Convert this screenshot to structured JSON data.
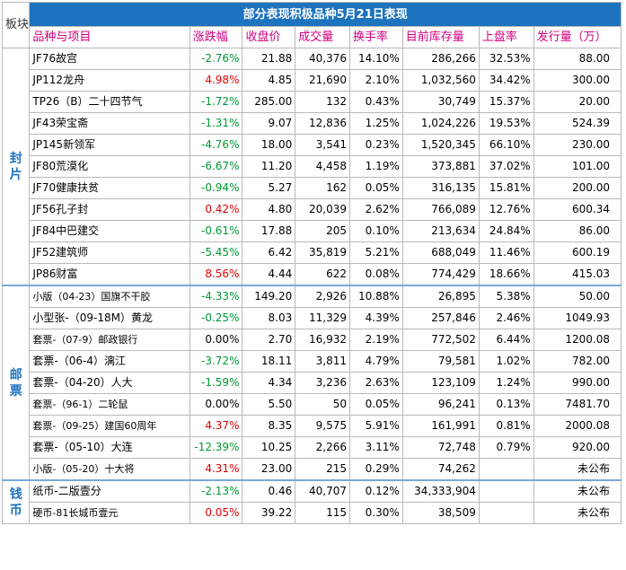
{
  "table": {
    "corner_label": "板块",
    "title": "部分表现积极品种5月21日表现",
    "headers": [
      "品种与项目",
      "涨跌幅",
      "收盘价",
      "成交量",
      "换手率",
      "目前库存量",
      "上盘率",
      "发行量（万）"
    ]
  },
  "colors": {
    "up": "#e00000",
    "down": "#009933",
    "accent": "#1e73be",
    "header_text": "#d2007f"
  },
  "sections": [
    {
      "label": "封\n片",
      "rows": [
        {
          "name": "JF76故宫",
          "change": "-2.76%",
          "dir": "down",
          "close": "21.88",
          "volume": "40,376",
          "turnover": "14.10%",
          "stock": "286,266",
          "rate": "32.53%",
          "issue": "88.00"
        },
        {
          "name": "JP112龙舟",
          "change": "4.98%",
          "dir": "up",
          "close": "4.85",
          "volume": "21,690",
          "turnover": "2.10%",
          "stock": "1,032,560",
          "rate": "34.42%",
          "issue": "300.00"
        },
        {
          "name": "TP26（B）二十四节气",
          "change": "-1.72%",
          "dir": "down",
          "close": "285.00",
          "volume": "132",
          "turnover": "0.43%",
          "stock": "30,749",
          "rate": "15.37%",
          "issue": "20.00"
        },
        {
          "name": "JF43荣宝斋",
          "change": "-1.31%",
          "dir": "down",
          "close": "9.07",
          "volume": "12,836",
          "turnover": "1.25%",
          "stock": "1,024,226",
          "rate": "19.53%",
          "issue": "524.39"
        },
        {
          "name": "JP145新领军",
          "change": "-4.76%",
          "dir": "down",
          "close": "18.00",
          "volume": "3,541",
          "turnover": "0.23%",
          "stock": "1,520,345",
          "rate": "66.10%",
          "issue": "230.00"
        },
        {
          "name": "JF80荒漠化",
          "change": "-6.67%",
          "dir": "down",
          "close": "11.20",
          "volume": "4,458",
          "turnover": "1.19%",
          "stock": "373,881",
          "rate": "37.02%",
          "issue": "101.00"
        },
        {
          "name": "JF70健康扶贫",
          "change": "-0.94%",
          "dir": "down",
          "close": "5.27",
          "volume": "162",
          "turnover": "0.05%",
          "stock": "316,135",
          "rate": "15.81%",
          "issue": "200.00"
        },
        {
          "name": "JF56孔子封",
          "change": "0.42%",
          "dir": "up",
          "close": "4.80",
          "volume": "20,039",
          "turnover": "2.62%",
          "stock": "766,089",
          "rate": "12.76%",
          "issue": "600.34"
        },
        {
          "name": "JF84中巴建交",
          "change": "-0.61%",
          "dir": "down",
          "close": "17.88",
          "volume": "205",
          "turnover": "0.10%",
          "stock": "213,634",
          "rate": "24.84%",
          "issue": "86.00"
        },
        {
          "name": "JF52建筑师",
          "change": "-5.45%",
          "dir": "down",
          "close": "6.42",
          "volume": "35,819",
          "turnover": "5.21%",
          "stock": "688,049",
          "rate": "11.46%",
          "issue": "600.19"
        },
        {
          "name": "JP86财富",
          "change": "8.56%",
          "dir": "up",
          "close": "4.44",
          "volume": "622",
          "turnover": "0.08%",
          "stock": "774,429",
          "rate": "18.66%",
          "issue": "415.03"
        }
      ]
    },
    {
      "label": "邮\n票",
      "rows": [
        {
          "name": "小版（04-23）国旗不干胶",
          "small": true,
          "change": "-4.33%",
          "dir": "down",
          "close": "149.20",
          "volume": "2,926",
          "turnover": "10.88%",
          "stock": "26,895",
          "rate": "5.38%",
          "issue": "50.00"
        },
        {
          "name": "小型张-（09-18M）黄龙",
          "change": "-0.25%",
          "dir": "down",
          "close": "8.03",
          "volume": "11,329",
          "turnover": "4.39%",
          "stock": "257,846",
          "rate": "2.46%",
          "issue": "1049.93"
        },
        {
          "name": "套票-（07-9）邮政银行",
          "small": true,
          "change": "0.00%",
          "dir": "flat",
          "close": "2.70",
          "volume": "16,932",
          "turnover": "2.19%",
          "stock": "772,502",
          "rate": "6.44%",
          "issue": "1200.08"
        },
        {
          "name": "套票-（06-4）漓江",
          "change": "-3.72%",
          "dir": "down",
          "close": "18.11",
          "volume": "3,811",
          "turnover": "4.79%",
          "stock": "79,581",
          "rate": "1.02%",
          "issue": "782.00"
        },
        {
          "name": "套票-（04-20）人大",
          "change": "-1.59%",
          "dir": "down",
          "close": "4.34",
          "volume": "3,236",
          "turnover": "2.63%",
          "stock": "123,109",
          "rate": "1.24%",
          "issue": "990.00"
        },
        {
          "name": "套票-（96-1）二轮鼠",
          "small": true,
          "change": "0.00%",
          "dir": "flat",
          "close": "5.50",
          "volume": "50",
          "turnover": "0.05%",
          "stock": "96,241",
          "rate": "0.13%",
          "issue": "7481.70"
        },
        {
          "name": "套票-（09-25）建国60周年",
          "small": true,
          "change": "4.37%",
          "dir": "up",
          "close": "8.35",
          "volume": "9,575",
          "turnover": "5.91%",
          "stock": "161,991",
          "rate": "0.81%",
          "issue": "2000.08"
        },
        {
          "name": "套票-（05-10）大连",
          "change": "-12.39%",
          "dir": "down",
          "close": "10.25",
          "volume": "2,266",
          "turnover": "3.11%",
          "stock": "72,748",
          "rate": "0.79%",
          "issue": "920.00"
        },
        {
          "name": "小版-（05-20）十大将",
          "small": true,
          "change": "4.31%",
          "dir": "up",
          "close": "23.00",
          "volume": "215",
          "turnover": "0.29%",
          "stock": "74,262",
          "rate": "",
          "issue": "未公布"
        }
      ]
    },
    {
      "label": "钱\n币",
      "rows": [
        {
          "name": "纸币-二版壹分",
          "change": "-2.13%",
          "dir": "down",
          "close": "0.46",
          "volume": "40,707",
          "turnover": "0.12%",
          "stock": "34,333,904",
          "rate": "",
          "issue": "未公布"
        },
        {
          "name": "硬币-81长城币壹元",
          "small": true,
          "change": "0.05%",
          "dir": "up",
          "close": "39.22",
          "volume": "115",
          "turnover": "0.30%",
          "stock": "38,509",
          "rate": "",
          "issue": "未公布"
        }
      ]
    }
  ]
}
